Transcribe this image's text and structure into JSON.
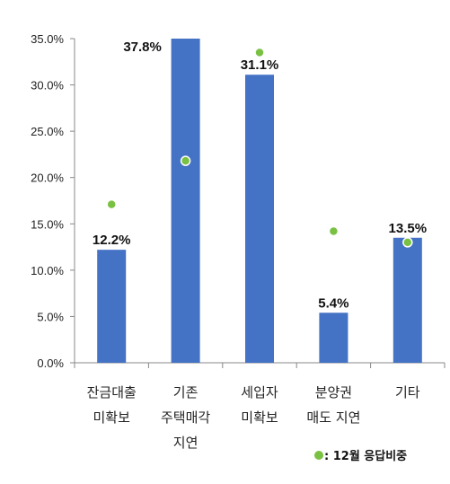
{
  "chart_data": {
    "type": "bar",
    "categories": [
      [
        "잔금대출",
        "미확보"
      ],
      [
        "기존",
        "주택매각",
        "지연"
      ],
      [
        "세입자",
        "미확보"
      ],
      [
        "분양권",
        "매도 지연"
      ],
      [
        "기타"
      ]
    ],
    "series": [
      {
        "values": [
          12.2,
          37.8,
          31.1,
          5.4,
          13.5
        ],
        "data_labels": [
          "12.2%",
          "37.8%",
          "31.1%",
          "5.4%",
          "13.5%"
        ],
        "color": "#4472C4"
      },
      {
        "name": "12월 응답비중",
        "type": "scatter",
        "values": [
          17.1,
          21.8,
          33.5,
          14.2,
          13.0
        ],
        "color": "#7AC143"
      }
    ],
    "ylim": [
      0,
      35
    ],
    "yticks": [
      0,
      5,
      10,
      15,
      20,
      25,
      30,
      35
    ],
    "ytick_labels": [
      "0.0%",
      "5.0%",
      "10.0%",
      "15.0%",
      "20.0%",
      "25.0%",
      "30.0%",
      "35.0%"
    ],
    "grid": false,
    "legend": {
      "position": "bottom-right",
      "marker": "●",
      "label": ": 12월 응답비중"
    }
  }
}
